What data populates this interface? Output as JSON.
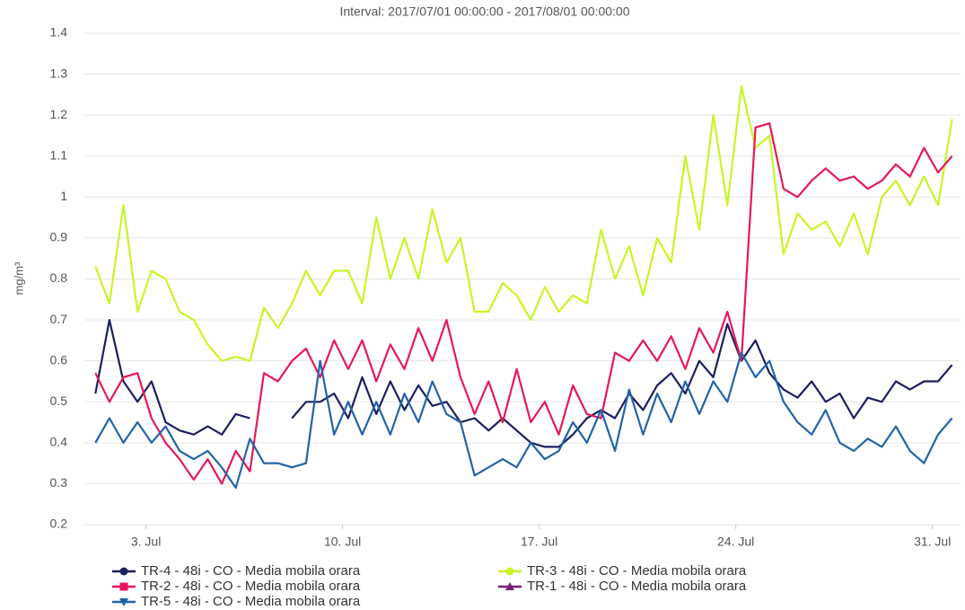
{
  "chart_data": {
    "type": "line",
    "title": "Interval: 2017/07/01 00:00:00 - 2017/08/01 00:00:00",
    "y_label": "mg/m³",
    "x": [
      1.2,
      1.7,
      2.2,
      2.7,
      3.2,
      3.7,
      4.2,
      4.7,
      5.2,
      5.7,
      6.2,
      6.7,
      7.2,
      7.7,
      8.2,
      8.7,
      9.2,
      9.7,
      10.2,
      10.7,
      11.2,
      11.7,
      12.2,
      12.7,
      13.2,
      13.7,
      14.2,
      14.7,
      15.2,
      15.7,
      16.2,
      16.7,
      17.2,
      17.7,
      18.2,
      18.7,
      19.2,
      19.7,
      20.2,
      20.7,
      21.2,
      21.7,
      22.2,
      22.7,
      23.2,
      23.7,
      24.2,
      24.7,
      25.2,
      25.7,
      26.2,
      26.7,
      27.2,
      27.7,
      28.2,
      28.7,
      29.2,
      29.7,
      30.2,
      30.7,
      31.2,
      31.7
    ],
    "xlim": [
      1,
      32
    ],
    "xticks": [
      {
        "value": 3,
        "label": "3. Jul"
      },
      {
        "value": 10,
        "label": "10. Jul"
      },
      {
        "value": 17,
        "label": "17. Jul"
      },
      {
        "value": 24,
        "label": "24. Jul"
      },
      {
        "value": 31,
        "label": "31. Jul"
      }
    ],
    "ylim": [
      0.2,
      1.4
    ],
    "yticks": [
      0.2,
      0.3,
      0.4,
      0.5,
      0.6,
      0.7,
      0.8,
      0.9,
      1,
      1.1,
      1.2,
      1.3,
      1.4
    ],
    "grid": true,
    "series": [
      {
        "name": "TR-4 - 48i - CO - Media mobila orara",
        "color": "#1b1f5e",
        "marker": "circle",
        "values": [
          0.52,
          0.7,
          0.55,
          0.5,
          0.55,
          0.45,
          0.43,
          0.42,
          0.44,
          0.42,
          0.47,
          0.46,
          null,
          null,
          0.46,
          0.5,
          0.5,
          0.52,
          0.46,
          0.56,
          0.47,
          0.55,
          0.48,
          0.54,
          0.49,
          0.5,
          0.45,
          0.46,
          0.43,
          0.46,
          0.43,
          0.4,
          0.39,
          0.39,
          0.42,
          0.46,
          0.48,
          0.46,
          0.52,
          0.48,
          0.54,
          0.57,
          0.52,
          0.6,
          0.56,
          0.69,
          0.6,
          0.65,
          0.57,
          0.53,
          0.51,
          0.55,
          0.5,
          0.52,
          0.46,
          0.51,
          0.5,
          0.55,
          0.53,
          0.55,
          0.55,
          0.59
        ]
      },
      {
        "name": "TR-3 - 48i - CO - Media mobila orara",
        "color": "#c8f526",
        "marker": "circle",
        "values": [
          0.83,
          0.74,
          0.98,
          0.72,
          0.82,
          0.8,
          0.72,
          0.7,
          0.64,
          0.6,
          0.61,
          0.6,
          0.73,
          0.68,
          0.74,
          0.82,
          0.76,
          0.82,
          0.82,
          0.74,
          0.95,
          0.8,
          0.9,
          0.8,
          0.97,
          0.84,
          0.9,
          0.72,
          0.72,
          0.79,
          0.76,
          0.7,
          0.78,
          0.72,
          0.76,
          0.74,
          0.92,
          0.8,
          0.88,
          0.76,
          0.9,
          0.84,
          1.1,
          0.92,
          1.2,
          0.98,
          1.27,
          1.12,
          1.15,
          0.86,
          0.96,
          0.92,
          0.94,
          0.88,
          0.96,
          0.86,
          1,
          1.04,
          0.98,
          1.05,
          0.98,
          1.19
        ]
      },
      {
        "name": "TR-2 - 48i - CO - Media mobila orara",
        "color": "#e6185a",
        "marker": "square",
        "values": [
          0.57,
          0.5,
          0.56,
          0.57,
          0.46,
          0.4,
          0.36,
          0.31,
          0.36,
          0.3,
          0.38,
          0.33,
          0.57,
          0.55,
          0.6,
          0.63,
          0.56,
          0.65,
          0.58,
          0.65,
          0.55,
          0.64,
          0.58,
          0.68,
          0.6,
          0.7,
          0.56,
          0.47,
          0.55,
          0.45,
          0.58,
          0.45,
          0.5,
          0.42,
          0.54,
          0.47,
          0.46,
          0.62,
          0.6,
          0.65,
          0.6,
          0.66,
          0.58,
          0.68,
          0.62,
          0.72,
          0.6,
          1.17,
          1.18,
          1.02,
          1,
          1.04,
          1.07,
          1.04,
          1.05,
          1.02,
          1.04,
          1.08,
          1.05,
          1.12,
          1.06,
          1.1
        ]
      },
      {
        "name": "TR-1 - 48i - CO - Media mobila orara",
        "color": "#7a1f7a",
        "marker": "triangle",
        "values": [
          null,
          null,
          null,
          null,
          null,
          null,
          null,
          null,
          null,
          null,
          null,
          null,
          null,
          null,
          null,
          null,
          null,
          null,
          null,
          null,
          null,
          null,
          null,
          null,
          null,
          null,
          null,
          null,
          null,
          null,
          null,
          null,
          null,
          null,
          null,
          null,
          null,
          null,
          null,
          null,
          null,
          null,
          null,
          null,
          null,
          null,
          null,
          null,
          null,
          null,
          null,
          null,
          null,
          null,
          null,
          null,
          null,
          null,
          null,
          null,
          null,
          null
        ]
      },
      {
        "name": "TR-5 - 48i - CO - Media mobila orara",
        "color": "#2363a8",
        "marker": "triangle-down",
        "values": [
          0.4,
          0.46,
          0.4,
          0.45,
          0.4,
          0.44,
          0.38,
          0.36,
          0.38,
          0.34,
          0.29,
          0.41,
          0.35,
          0.35,
          0.34,
          0.35,
          0.6,
          0.42,
          0.5,
          0.42,
          0.5,
          0.42,
          0.52,
          0.45,
          0.55,
          0.47,
          0.45,
          0.32,
          0.34,
          0.36,
          0.34,
          0.4,
          0.36,
          0.38,
          0.45,
          0.4,
          0.48,
          0.38,
          0.53,
          0.42,
          0.52,
          0.45,
          0.55,
          0.47,
          0.55,
          0.5,
          0.62,
          0.56,
          0.6,
          0.5,
          0.45,
          0.42,
          0.48,
          0.4,
          0.38,
          0.41,
          0.39,
          0.44,
          0.38,
          0.35,
          0.42,
          0.46
        ]
      }
    ]
  }
}
